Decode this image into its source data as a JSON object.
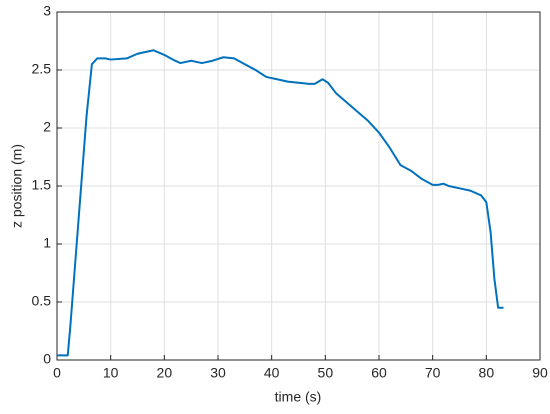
{
  "chart_data": {
    "type": "line",
    "xlabel": "time (s)",
    "ylabel": "z position (m)",
    "x": [
      0,
      2,
      2.5,
      4,
      5.5,
      6.5,
      7.5,
      9,
      10,
      13,
      15,
      18,
      20,
      22,
      23,
      25,
      27,
      29,
      31,
      33,
      35,
      37,
      39,
      41,
      43,
      45,
      47,
      48,
      49.5,
      50.5,
      52,
      54,
      56,
      58,
      60,
      62,
      64,
      66,
      68,
      70,
      71,
      72,
      73,
      75,
      77,
      79,
      80,
      80.8,
      81.5,
      82.2,
      83.2
    ],
    "series": [
      {
        "color": "#0072bd",
        "values": [
          0.04,
          0.04,
          0.3,
          1.2,
          2.1,
          2.55,
          2.6,
          2.6,
          2.59,
          2.6,
          2.64,
          2.67,
          2.63,
          2.58,
          2.56,
          2.58,
          2.56,
          2.58,
          2.61,
          2.6,
          2.55,
          2.5,
          2.44,
          2.42,
          2.4,
          2.39,
          2.38,
          2.38,
          2.42,
          2.39,
          2.3,
          2.22,
          2.14,
          2.06,
          1.96,
          1.83,
          1.68,
          1.63,
          1.56,
          1.51,
          1.51,
          1.52,
          1.5,
          1.48,
          1.46,
          1.42,
          1.36,
          1.1,
          0.7,
          0.45,
          0.45
        ]
      }
    ],
    "xlim": [
      0,
      90
    ],
    "xticks": [
      0,
      10,
      20,
      30,
      40,
      50,
      60,
      70,
      80,
      90
    ],
    "ylim": [
      0,
      3
    ],
    "yticks": [
      0,
      0.5,
      1,
      1.5,
      2,
      2.5,
      3
    ],
    "grid": true
  }
}
